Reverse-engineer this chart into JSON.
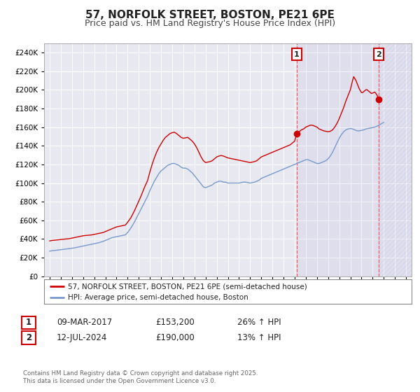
{
  "title": "57, NORFOLK STREET, BOSTON, PE21 6PE",
  "subtitle": "Price paid vs. HM Land Registry's House Price Index (HPI)",
  "title_fontsize": 11,
  "subtitle_fontsize": 9,
  "background_color": "#ffffff",
  "plot_background_color": "#e8e8f0",
  "grid_color": "#ffffff",
  "red_line_color": "#cc0000",
  "blue_line_color": "#7799cc",
  "vline_color": "#ff5555",
  "annotation_box_color": "#cc0000",
  "ylim": [
    0,
    250000
  ],
  "yticks": [
    0,
    20000,
    40000,
    60000,
    80000,
    100000,
    120000,
    140000,
    160000,
    180000,
    200000,
    220000,
    240000
  ],
  "xlim_start": 1994.5,
  "xlim_end": 2027.5,
  "marker1_x": 2017.18,
  "marker1_y": 153200,
  "marker2_x": 2024.53,
  "marker2_y": 190000,
  "vline1_x": 2017.18,
  "vline2_x": 2024.53,
  "legend_label1": "57, NORFOLK STREET, BOSTON, PE21 6PE (semi-detached house)",
  "legend_label2": "HPI: Average price, semi-detached house, Boston",
  "table_row1_num": "1",
  "table_row1_date": "09-MAR-2017",
  "table_row1_price": "£153,200",
  "table_row1_hpi": "26% ↑ HPI",
  "table_row2_num": "2",
  "table_row2_date": "12-JUL-2024",
  "table_row2_price": "£190,000",
  "table_row2_hpi": "13% ↑ HPI",
  "footnote": "Contains HM Land Registry data © Crown copyright and database right 2025.\nThis data is licensed under the Open Government Licence v3.0.",
  "red_data": {
    "years": [
      1995.0,
      1995.1,
      1995.2,
      1995.4,
      1995.6,
      1995.8,
      1996.0,
      1996.2,
      1996.4,
      1996.6,
      1996.8,
      1997.0,
      1997.2,
      1997.4,
      1997.6,
      1997.8,
      1998.0,
      1998.2,
      1998.4,
      1998.6,
      1998.8,
      1999.0,
      1999.2,
      1999.4,
      1999.6,
      1999.8,
      2000.0,
      2000.2,
      2000.4,
      2000.6,
      2000.8,
      2001.0,
      2001.2,
      2001.4,
      2001.6,
      2001.8,
      2002.0,
      2002.3,
      2002.6,
      2002.9,
      2003.2,
      2003.5,
      2003.8,
      2004.0,
      2004.2,
      2004.4,
      2004.6,
      2004.8,
      2005.0,
      2005.2,
      2005.4,
      2005.6,
      2005.8,
      2006.0,
      2006.2,
      2006.4,
      2006.6,
      2006.8,
      2007.0,
      2007.2,
      2007.4,
      2007.6,
      2007.8,
      2008.0,
      2008.2,
      2008.4,
      2008.6,
      2008.8,
      2009.0,
      2009.2,
      2009.4,
      2009.6,
      2009.8,
      2010.0,
      2010.2,
      2010.4,
      2010.6,
      2010.8,
      2011.0,
      2011.2,
      2011.4,
      2011.6,
      2011.8,
      2012.0,
      2012.2,
      2012.4,
      2012.6,
      2012.8,
      2013.0,
      2013.2,
      2013.4,
      2013.6,
      2013.8,
      2014.0,
      2014.2,
      2014.4,
      2014.6,
      2014.8,
      2015.0,
      2015.2,
      2015.4,
      2015.6,
      2015.8,
      2016.0,
      2016.2,
      2016.4,
      2016.6,
      2016.8,
      2017.0,
      2017.18,
      2017.4,
      2017.6,
      2017.8,
      2018.0,
      2018.2,
      2018.4,
      2018.6,
      2018.8,
      2019.0,
      2019.2,
      2019.4,
      2019.6,
      2019.8,
      2020.0,
      2020.2,
      2020.4,
      2020.6,
      2020.8,
      2021.0,
      2021.2,
      2021.4,
      2021.6,
      2021.8,
      2022.0,
      2022.1,
      2022.2,
      2022.3,
      2022.4,
      2022.5,
      2022.6,
      2022.7,
      2022.8,
      2022.9,
      2023.0,
      2023.1,
      2023.2,
      2023.3,
      2023.4,
      2023.5,
      2023.6,
      2023.7,
      2023.8,
      2023.9,
      2024.0,
      2024.1,
      2024.2,
      2024.3,
      2024.4,
      2024.53,
      2024.7
    ],
    "values": [
      38000,
      38200,
      38500,
      38700,
      39000,
      39200,
      39500,
      39700,
      40000,
      40200,
      40500,
      41000,
      41500,
      42000,
      42500,
      43000,
      43500,
      43800,
      44000,
      44200,
      44500,
      45000,
      45500,
      46000,
      46500,
      47000,
      48000,
      49000,
      50000,
      51000,
      52000,
      53000,
      53500,
      54000,
      54500,
      55000,
      58000,
      63000,
      70000,
      78000,
      86000,
      95000,
      103000,
      112000,
      120000,
      127000,
      133000,
      138000,
      142000,
      146000,
      149000,
      151000,
      153000,
      154000,
      154500,
      153000,
      151000,
      149000,
      148000,
      148500,
      149000,
      147000,
      145000,
      142000,
      138000,
      133000,
      128000,
      124000,
      122000,
      122500,
      123000,
      124000,
      126000,
      128000,
      129000,
      129500,
      129000,
      128000,
      127000,
      126500,
      126000,
      125500,
      125000,
      124500,
      124000,
      123500,
      123000,
      122500,
      122000,
      122500,
      123000,
      124000,
      126000,
      128000,
      129000,
      130000,
      131000,
      132000,
      133000,
      134000,
      135000,
      136000,
      137000,
      138000,
      139000,
      140000,
      141000,
      143000,
      145000,
      153200,
      155000,
      157000,
      158000,
      160000,
      161000,
      162000,
      162000,
      161000,
      160000,
      158000,
      157000,
      156000,
      155500,
      155000,
      155500,
      157000,
      160000,
      164000,
      169000,
      175000,
      181000,
      188000,
      194000,
      200000,
      205000,
      210000,
      214000,
      212000,
      210000,
      207000,
      204000,
      201000,
      199000,
      197000,
      197000,
      198000,
      199000,
      200000,
      200000,
      199000,
      198000,
      197000,
      196000,
      196500,
      197000,
      197500,
      196000,
      194000,
      190000,
      188000
    ]
  },
  "blue_data": {
    "years": [
      1995.0,
      1995.1,
      1995.2,
      1995.4,
      1995.6,
      1995.8,
      1996.0,
      1996.2,
      1996.4,
      1996.6,
      1996.8,
      1997.0,
      1997.2,
      1997.4,
      1997.6,
      1997.8,
      1998.0,
      1998.2,
      1998.4,
      1998.6,
      1998.8,
      1999.0,
      1999.2,
      1999.4,
      1999.6,
      1999.8,
      2000.0,
      2000.2,
      2000.4,
      2000.6,
      2000.8,
      2001.0,
      2001.2,
      2001.4,
      2001.6,
      2001.8,
      2002.0,
      2002.3,
      2002.6,
      2002.9,
      2003.2,
      2003.5,
      2003.8,
      2004.0,
      2004.2,
      2004.4,
      2004.6,
      2004.8,
      2005.0,
      2005.2,
      2005.4,
      2005.6,
      2005.8,
      2006.0,
      2006.2,
      2006.4,
      2006.6,
      2006.8,
      2007.0,
      2007.2,
      2007.4,
      2007.6,
      2007.8,
      2008.0,
      2008.2,
      2008.4,
      2008.6,
      2008.8,
      2009.0,
      2009.2,
      2009.4,
      2009.6,
      2009.8,
      2010.0,
      2010.2,
      2010.4,
      2010.6,
      2010.8,
      2011.0,
      2011.2,
      2011.4,
      2011.6,
      2011.8,
      2012.0,
      2012.2,
      2012.4,
      2012.6,
      2012.8,
      2013.0,
      2013.2,
      2013.4,
      2013.6,
      2013.8,
      2014.0,
      2014.2,
      2014.4,
      2014.6,
      2014.8,
      2015.0,
      2015.2,
      2015.4,
      2015.6,
      2015.8,
      2016.0,
      2016.2,
      2016.4,
      2016.6,
      2016.8,
      2017.0,
      2017.4,
      2017.6,
      2017.8,
      2018.0,
      2018.2,
      2018.4,
      2018.6,
      2018.8,
      2019.0,
      2019.2,
      2019.4,
      2019.6,
      2019.8,
      2020.0,
      2020.2,
      2020.4,
      2020.6,
      2020.8,
      2021.0,
      2021.2,
      2021.4,
      2021.6,
      2021.8,
      2022.0,
      2022.2,
      2022.4,
      2022.6,
      2022.8,
      2023.0,
      2023.2,
      2023.4,
      2023.6,
      2023.8,
      2024.0,
      2024.2,
      2024.4,
      2024.7,
      2025.0
    ],
    "values": [
      27000,
      27200,
      27500,
      27700,
      28000,
      28300,
      28600,
      28900,
      29200,
      29500,
      29800,
      30200,
      30500,
      31000,
      31500,
      32000,
      32500,
      33000,
      33500,
      34000,
      34500,
      35000,
      35500,
      36000,
      36800,
      37500,
      38500,
      39500,
      40500,
      41500,
      42000,
      42500,
      43000,
      43500,
      44000,
      44500,
      47000,
      52000,
      58000,
      65000,
      72000,
      79000,
      86000,
      92000,
      97000,
      102000,
      106000,
      110000,
      113000,
      115000,
      117000,
      119000,
      120000,
      121000,
      121000,
      120000,
      119000,
      117000,
      116000,
      116000,
      115000,
      113000,
      111000,
      108000,
      105000,
      102000,
      99000,
      96000,
      95000,
      96000,
      97000,
      98000,
      100000,
      101000,
      102000,
      102000,
      101000,
      101000,
      100000,
      100000,
      100000,
      100000,
      100000,
      100000,
      100500,
      101000,
      101000,
      100500,
      100000,
      100500,
      101000,
      102000,
      103000,
      105000,
      106000,
      107000,
      108000,
      109000,
      110000,
      111000,
      112000,
      113000,
      114000,
      115000,
      116000,
      117000,
      118000,
      119000,
      120000,
      122000,
      123000,
      124000,
      125000,
      125000,
      124000,
      123000,
      122000,
      121000,
      121000,
      122000,
      123000,
      124000,
      126000,
      129000,
      133000,
      138000,
      143000,
      148000,
      152000,
      155000,
      157000,
      158000,
      158500,
      158000,
      157000,
      156000,
      156000,
      156500,
      157000,
      158000,
      158500,
      159000,
      159500,
      160000,
      161000,
      163000,
      165000
    ]
  }
}
